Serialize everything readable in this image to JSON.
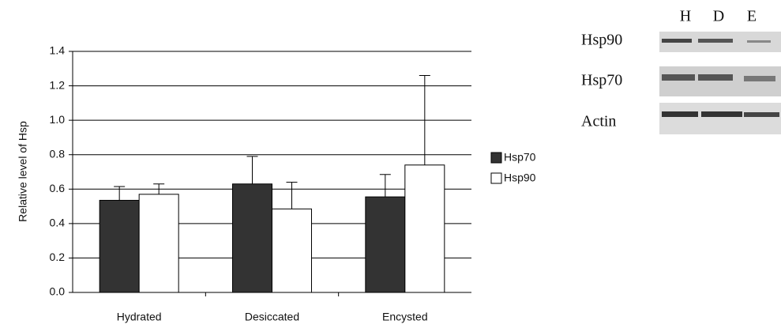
{
  "chart_data": {
    "type": "bar",
    "y_label": "Relative level of Hsp",
    "categories": [
      "Hydrated",
      "Desiccated",
      "Encysted"
    ],
    "series": [
      {
        "name": "Hsp70",
        "color": "#333333",
        "values": [
          0.535,
          0.63,
          0.555
        ],
        "errors": [
          0.08,
          0.16,
          0.13
        ]
      },
      {
        "name": "Hsp90",
        "color": "#ffffff",
        "values": [
          0.57,
          0.485,
          0.74
        ],
        "errors": [
          0.06,
          0.155,
          0.52
        ]
      }
    ],
    "ylim": [
      0,
      1.4
    ],
    "yticks": [
      {
        "value": 0,
        "label": "0.0"
      },
      0.2,
      0.4,
      0.6,
      0.8,
      {
        "value": 1,
        "label": "1.0"
      },
      1.2,
      1.4
    ],
    "grid": true,
    "legend": "right"
  },
  "blot": {
    "lanes": [
      "H",
      "D",
      "E"
    ],
    "rows": [
      "Hsp90",
      "Hsp70",
      "Actin"
    ]
  }
}
